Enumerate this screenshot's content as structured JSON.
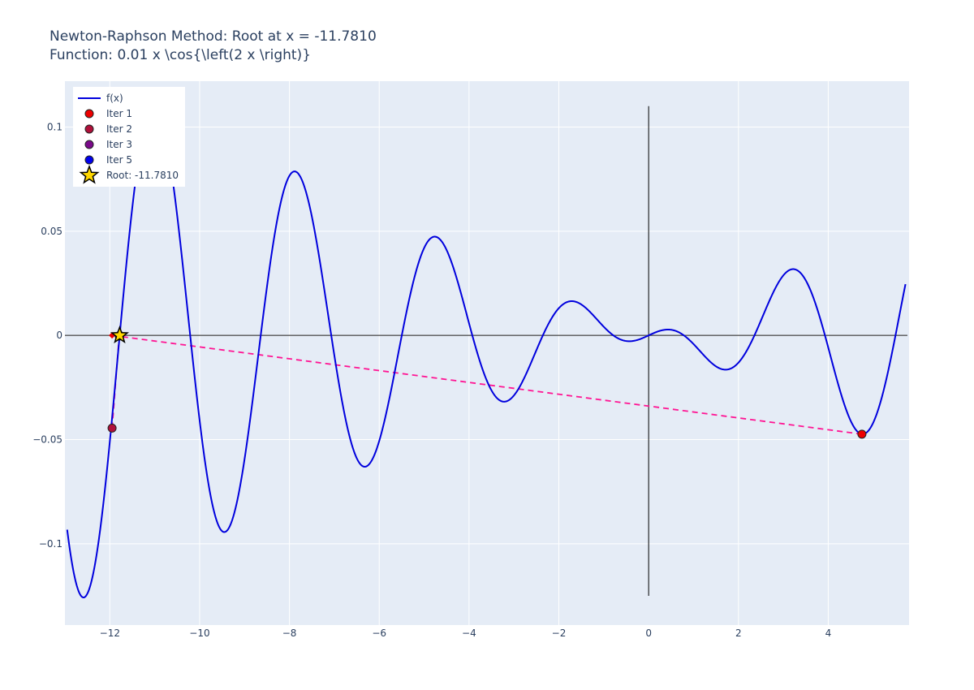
{
  "chart_data": {
    "type": "line",
    "title": "Newton-Raphson Method: Root at x = -11.7810",
    "subtitle": "Function: 0.01 x \\cos{\\left(2 x \\right)}",
    "function": "0.01*x*cos(2*x)",
    "xlim": [
      -13,
      5.8
    ],
    "ylim": [
      -0.139,
      0.122
    ],
    "x_ticks": [
      -12,
      -10,
      -8,
      -6,
      -4,
      -2,
      0,
      2,
      4
    ],
    "y_ticks": [
      -0.1,
      -0.05,
      0,
      0.05,
      0.1
    ],
    "x_tick_labels": [
      "−12",
      "−10",
      "−8",
      "−6",
      "−4",
      "−2",
      "0",
      "2",
      "4"
    ],
    "y_tick_labels": [
      "−0.1",
      "−0.05",
      "0",
      "0.05",
      "0.1"
    ],
    "grid": true,
    "legend_position": "top-left",
    "series": [
      {
        "name": "f(x)",
        "kind": "line",
        "color": "#0000dd"
      }
    ],
    "iterations": [
      {
        "name": "Iter 1",
        "x": 4.75,
        "y": -0.0474,
        "color": "#ee0000"
      },
      {
        "name": "Iter 2",
        "x": -11.95,
        "y": -0.0445,
        "color": "#b0103a"
      },
      {
        "name": "Iter 3",
        "x": -11.79,
        "y": -0.0003,
        "color": "#7a0a8a"
      },
      {
        "name": "Iter 5",
        "x": -11.781,
        "y": 0.0,
        "color": "#0000ee"
      }
    ],
    "tangent_color": "#ff1493",
    "tangent_zero_points": [
      {
        "x": -11.95,
        "y": 0,
        "color": "#ee0000"
      },
      {
        "x": -11.79,
        "y": 0,
        "color": "#b0103a"
      }
    ],
    "tangent_paths": [
      [
        [
          4.75,
          -0.0474
        ],
        [
          -11.95,
          0
        ]
      ],
      [
        [
          -11.95,
          -0.0445
        ],
        [
          -11.79,
          0
        ]
      ]
    ],
    "root": {
      "name": "Root: -11.7810",
      "x": -11.781,
      "y": 0.0,
      "color": "#ffd700"
    }
  }
}
